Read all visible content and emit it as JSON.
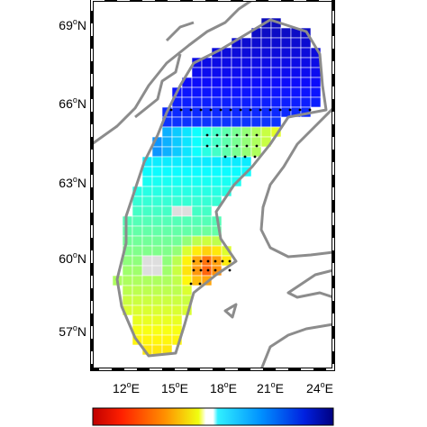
{
  "map": {
    "lat_labels": [
      {
        "deg": "69",
        "sup": "o",
        "hem": "N"
      },
      {
        "deg": "66",
        "sup": "o",
        "hem": "N"
      },
      {
        "deg": "63",
        "sup": "o",
        "hem": "N"
      },
      {
        "deg": "60",
        "sup": "o",
        "hem": "N"
      },
      {
        "deg": "57",
        "sup": "o",
        "hem": "N"
      }
    ],
    "lon_labels": [
      {
        "deg": "12",
        "sup": "o",
        "hem": "E"
      },
      {
        "deg": "15",
        "sup": "o",
        "hem": "E"
      },
      {
        "deg": "18",
        "sup": "o",
        "hem": "E"
      },
      {
        "deg": "21",
        "sup": "o",
        "hem": "E"
      },
      {
        "deg": "24",
        "sup": "o",
        "hem": "E"
      }
    ]
  }
}
